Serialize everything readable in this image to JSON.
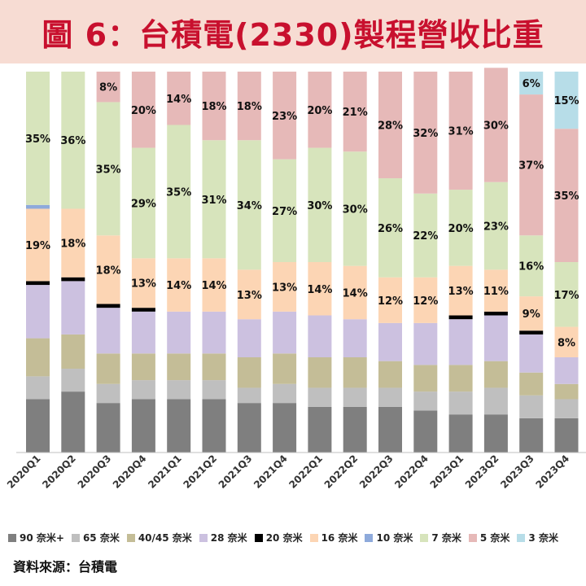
{
  "header": {
    "title": "圖 6：台積電(2330)製程營收比重"
  },
  "source": "資料來源：台積電",
  "chart_data": {
    "type": "bar",
    "stacked": true,
    "percent": true,
    "title": "圖 6：台積電(2330)製程營收比重",
    "categories": [
      "2020Q1",
      "2020Q2",
      "2020Q3",
      "2020Q4",
      "2021Q1",
      "2021Q2",
      "2021Q3",
      "2021Q4",
      "2022Q1",
      "2022Q2",
      "2022Q3",
      "2022Q4",
      "2023Q1",
      "2023Q2",
      "2023Q3",
      "2023Q4"
    ],
    "ylim": [
      0,
      100
    ],
    "legend_position": "bottom",
    "grid": false,
    "series": [
      {
        "name": "90 奈米+",
        "color": "#7f7f7f",
        "values": [
          14,
          16,
          13,
          14,
          14,
          14,
          13,
          13,
          12,
          12,
          12,
          11,
          10,
          10,
          9,
          9
        ]
      },
      {
        "name": "65 奈米",
        "color": "#bfbfbf",
        "values": [
          6,
          6,
          5,
          5,
          5,
          5,
          4,
          5,
          5,
          5,
          5,
          5,
          6,
          7,
          6,
          5
        ]
      },
      {
        "name": "40/45 奈米",
        "color": "#c4bd97",
        "values": [
          10,
          9,
          8,
          7,
          7,
          7,
          8,
          8,
          8,
          8,
          7,
          7,
          7,
          7,
          6,
          4
        ]
      },
      {
        "name": "28 奈米",
        "color": "#ccc1e0",
        "values": [
          14,
          14,
          12,
          11,
          11,
          11,
          10,
          11,
          11,
          10,
          10,
          11,
          12,
          12,
          10,
          7
        ]
      },
      {
        "name": "20 奈米",
        "color": "#000000",
        "values": [
          1,
          1,
          1,
          1,
          0,
          0,
          0,
          0,
          0,
          0,
          0,
          0,
          1,
          1,
          1,
          0
        ]
      },
      {
        "name": "16 奈米",
        "color": "#fcd5b4",
        "values": [
          19,
          18,
          18,
          13,
          14,
          14,
          13,
          13,
          14,
          14,
          12,
          12,
          13,
          11,
          9,
          8
        ]
      },
      {
        "name": "10 奈米",
        "color": "#8eaadb",
        "values": [
          1,
          0,
          0,
          0,
          0,
          0,
          0,
          0,
          0,
          0,
          0,
          0,
          0,
          0,
          0,
          0
        ]
      },
      {
        "name": "7 奈米",
        "color": "#d7e4bc",
        "values": [
          35,
          36,
          35,
          29,
          35,
          31,
          34,
          27,
          30,
          30,
          26,
          22,
          20,
          23,
          16,
          17
        ]
      },
      {
        "name": "5 奈米",
        "color": "#e6b9b8",
        "values": [
          0,
          0,
          8,
          20,
          14,
          18,
          18,
          23,
          20,
          21,
          28,
          32,
          31,
          30,
          37,
          35
        ]
      },
      {
        "name": "3 奈米",
        "color": "#b7dde8",
        "values": [
          0,
          0,
          0,
          0,
          0,
          0,
          0,
          0,
          0,
          0,
          0,
          0,
          0,
          0,
          6,
          15
        ]
      }
    ],
    "data_labels": [
      {
        "category": "2020Q1",
        "series": "16 奈米",
        "text": "19%"
      },
      {
        "category": "2020Q1",
        "series": "7 奈米",
        "text": "35%"
      },
      {
        "category": "2020Q2",
        "series": "16 奈米",
        "text": "18%"
      },
      {
        "category": "2020Q2",
        "series": "7 奈米",
        "text": "36%"
      },
      {
        "category": "2020Q3",
        "series": "16 奈米",
        "text": "18%"
      },
      {
        "category": "2020Q3",
        "series": "7 奈米",
        "text": "35%"
      },
      {
        "category": "2020Q3",
        "series": "5 奈米",
        "text": "8%"
      },
      {
        "category": "2020Q4",
        "series": "16 奈米",
        "text": "13%"
      },
      {
        "category": "2020Q4",
        "series": "7 奈米",
        "text": "29%"
      },
      {
        "category": "2020Q4",
        "series": "5 奈米",
        "text": "20%"
      },
      {
        "category": "2021Q1",
        "series": "16 奈米",
        "text": "14%"
      },
      {
        "category": "2021Q1",
        "series": "7 奈米",
        "text": "35%"
      },
      {
        "category": "2021Q1",
        "series": "5 奈米",
        "text": "14%"
      },
      {
        "category": "2021Q2",
        "series": "16 奈米",
        "text": "14%"
      },
      {
        "category": "2021Q2",
        "series": "7 奈米",
        "text": "31%"
      },
      {
        "category": "2021Q2",
        "series": "5 奈米",
        "text": "18%"
      },
      {
        "category": "2021Q3",
        "series": "16 奈米",
        "text": "13%"
      },
      {
        "category": "2021Q3",
        "series": "7 奈米",
        "text": "34%"
      },
      {
        "category": "2021Q3",
        "series": "5 奈米",
        "text": "18%"
      },
      {
        "category": "2021Q4",
        "series": "16 奈米",
        "text": "13%"
      },
      {
        "category": "2021Q4",
        "series": "7 奈米",
        "text": "27%"
      },
      {
        "category": "2021Q4",
        "series": "5 奈米",
        "text": "23%"
      },
      {
        "category": "2022Q1",
        "series": "16 奈米",
        "text": "14%"
      },
      {
        "category": "2022Q1",
        "series": "7 奈米",
        "text": "30%"
      },
      {
        "category": "2022Q1",
        "series": "5 奈米",
        "text": "20%"
      },
      {
        "category": "2022Q2",
        "series": "16 奈米",
        "text": "14%"
      },
      {
        "category": "2022Q2",
        "series": "7 奈米",
        "text": "30%"
      },
      {
        "category": "2022Q2",
        "series": "5 奈米",
        "text": "21%"
      },
      {
        "category": "2022Q3",
        "series": "16 奈米",
        "text": "12%"
      },
      {
        "category": "2022Q3",
        "series": "7 奈米",
        "text": "26%"
      },
      {
        "category": "2022Q3",
        "series": "5 奈米",
        "text": "28%"
      },
      {
        "category": "2022Q4",
        "series": "16 奈米",
        "text": "12%"
      },
      {
        "category": "2022Q4",
        "series": "7 奈米",
        "text": "22%"
      },
      {
        "category": "2022Q4",
        "series": "5 奈米",
        "text": "32%"
      },
      {
        "category": "2023Q1",
        "series": "16 奈米",
        "text": "13%"
      },
      {
        "category": "2023Q1",
        "series": "7 奈米",
        "text": "20%"
      },
      {
        "category": "2023Q1",
        "series": "5 奈米",
        "text": "31%"
      },
      {
        "category": "2023Q2",
        "series": "16 奈米",
        "text": "11%"
      },
      {
        "category": "2023Q2",
        "series": "7 奈米",
        "text": "23%"
      },
      {
        "category": "2023Q2",
        "series": "5 奈米",
        "text": "30%"
      },
      {
        "category": "2023Q3",
        "series": "16 奈米",
        "text": "9%"
      },
      {
        "category": "2023Q3",
        "series": "7 奈米",
        "text": "16%"
      },
      {
        "category": "2023Q3",
        "series": "5 奈米",
        "text": "37%"
      },
      {
        "category": "2023Q3",
        "series": "3 奈米",
        "text": "6%"
      },
      {
        "category": "2023Q4",
        "series": "16 奈米",
        "text": "8%"
      },
      {
        "category": "2023Q4",
        "series": "7 奈米",
        "text": "17%"
      },
      {
        "category": "2023Q4",
        "series": "5 奈米",
        "text": "35%"
      },
      {
        "category": "2023Q4",
        "series": "3 奈米",
        "text": "15%"
      }
    ]
  }
}
